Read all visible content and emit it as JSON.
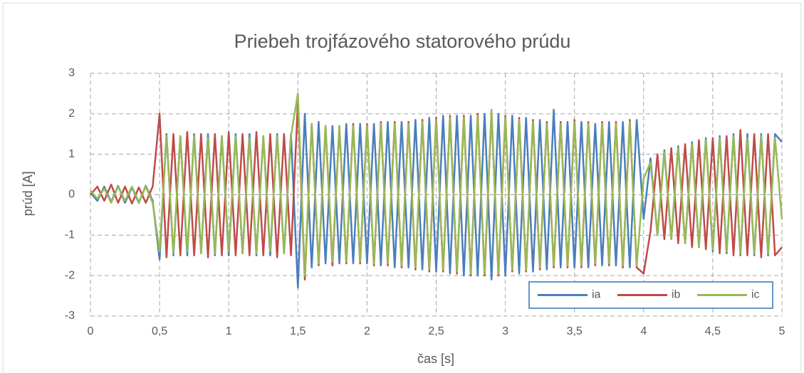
{
  "chart_data": {
    "type": "line",
    "title": "Priebeh trojfázového statorového prúdu",
    "x_label": "čas [s]",
    "y_label": "prúd [A]",
    "x": [
      0,
      0.05,
      0.1,
      0.15,
      0.2,
      0.25,
      0.3,
      0.35,
      0.4,
      0.45,
      0.5,
      0.55,
      0.6,
      0.65,
      0.7,
      0.75,
      0.8,
      0.85,
      0.9,
      0.95,
      1,
      1.05,
      1.1,
      1.15,
      1.2,
      1.25,
      1.3,
      1.35,
      1.4,
      1.45,
      1.5,
      1.55,
      1.6,
      1.65,
      1.7,
      1.75,
      1.8,
      1.85,
      1.9,
      1.95,
      2,
      2.05,
      2.1,
      2.15,
      2.2,
      2.25,
      2.3,
      2.35,
      2.4,
      2.45,
      2.5,
      2.55,
      2.6,
      2.65,
      2.7,
      2.75,
      2.8,
      2.85,
      2.9,
      2.95,
      3,
      3.05,
      3.1,
      3.15,
      3.2,
      3.25,
      3.3,
      3.35,
      3.4,
      3.45,
      3.5,
      3.55,
      3.6,
      3.65,
      3.7,
      3.75,
      3.8,
      3.85,
      3.9,
      3.95,
      4,
      4.05,
      4.1,
      4.15,
      4.2,
      4.25,
      4.3,
      4.35,
      4.4,
      4.45,
      4.5,
      4.55,
      4.6,
      4.65,
      4.7,
      4.75,
      4.8,
      4.85,
      4.9,
      4.95,
      5
    ],
    "series": [
      {
        "name": "ia",
        "color": "#4a7ebb",
        "values": [
          0.05,
          -0.15,
          0.2,
          -0.18,
          0.22,
          -0.2,
          0.18,
          -0.2,
          0.22,
          -0.15,
          -1.6,
          1.5,
          -1.5,
          1.45,
          -1.5,
          1.5,
          -1.45,
          1.5,
          -1.5,
          1.45,
          -1.5,
          1.5,
          -1.45,
          1.5,
          -1.5,
          1.45,
          -1.5,
          1.5,
          -1.45,
          1.5,
          -2.3,
          2.0,
          -1.8,
          1.8,
          -1.7,
          1.7,
          -1.7,
          1.75,
          -1.7,
          1.75,
          -1.7,
          1.75,
          -1.75,
          1.8,
          -1.8,
          1.8,
          -1.8,
          1.85,
          -1.85,
          1.9,
          -1.9,
          1.95,
          -1.95,
          1.95,
          -2.0,
          1.95,
          -2.0,
          2.0,
          -2.1,
          2.0,
          -2.0,
          1.95,
          -1.95,
          1.9,
          -1.9,
          1.85,
          -1.85,
          2.1,
          -1.8,
          1.8,
          -1.8,
          1.8,
          -1.8,
          1.75,
          -1.75,
          1.8,
          -1.75,
          1.8,
          -1.8,
          1.85,
          -0.6,
          0.9,
          -1.0,
          1.1,
          -1.1,
          1.2,
          -1.2,
          1.3,
          -1.3,
          1.4,
          -1.4,
          1.45,
          -1.45,
          1.5,
          -1.5,
          1.5,
          -1.5,
          1.5,
          -1.5,
          1.5,
          1.3
        ]
      },
      {
        "name": "ib",
        "color": "#be4b48",
        "values": [
          0.0,
          0.2,
          -0.15,
          0.25,
          -0.2,
          0.2,
          -0.22,
          0.18,
          -0.2,
          0.2,
          2.0,
          -1.55,
          1.5,
          -1.5,
          1.55,
          -1.5,
          1.5,
          -1.55,
          1.5,
          -1.5,
          1.55,
          -1.5,
          1.5,
          -1.5,
          1.55,
          -1.5,
          1.5,
          -1.55,
          1.5,
          -1.5,
          2.3,
          -2.1,
          1.75,
          -1.75,
          1.7,
          -1.75,
          1.7,
          -1.7,
          1.75,
          -1.7,
          1.75,
          -1.75,
          1.8,
          -1.75,
          1.8,
          -1.8,
          1.8,
          -1.85,
          1.85,
          -1.9,
          1.9,
          -1.9,
          1.95,
          -1.95,
          1.95,
          -2.0,
          2.0,
          -2.0,
          2.05,
          -2.0,
          1.95,
          -1.9,
          1.9,
          -1.9,
          1.85,
          -1.85,
          1.8,
          -1.8,
          1.8,
          -1.8,
          1.85,
          -1.8,
          1.8,
          -1.75,
          1.8,
          -1.75,
          1.8,
          -1.8,
          1.85,
          -1.8,
          -1.95,
          -0.9,
          1.0,
          -1.1,
          1.15,
          -1.2,
          1.25,
          -1.3,
          1.35,
          -1.35,
          1.4,
          -1.45,
          1.45,
          -1.5,
          1.6,
          -1.5,
          1.5,
          -1.55,
          1.5,
          -1.5,
          -1.3
        ]
      },
      {
        "name": "ic",
        "color": "#98b954",
        "values": [
          0.1,
          -0.1,
          0.15,
          -0.2,
          0.2,
          -0.15,
          0.2,
          -0.18,
          0.2,
          -0.2,
          -1.4,
          1.45,
          -1.45,
          1.45,
          -1.4,
          1.45,
          -1.45,
          1.4,
          -1.45,
          1.45,
          -1.4,
          1.45,
          -1.45,
          1.4,
          -1.45,
          1.45,
          -1.4,
          1.45,
          -1.45,
          1.45,
          2.5,
          -2.0,
          1.75,
          -1.7,
          1.7,
          -1.65,
          1.7,
          -1.65,
          1.7,
          -1.65,
          1.7,
          -1.7,
          1.75,
          -1.7,
          1.75,
          -1.75,
          1.75,
          -1.8,
          1.8,
          -1.85,
          1.85,
          -1.85,
          1.9,
          -1.9,
          1.9,
          -1.95,
          1.95,
          -1.95,
          2.1,
          -1.95,
          1.9,
          -1.85,
          1.85,
          -1.85,
          1.8,
          -1.8,
          1.75,
          -1.75,
          1.75,
          -1.75,
          1.8,
          -1.75,
          1.75,
          -1.7,
          1.75,
          -1.7,
          1.75,
          -1.75,
          1.8,
          -1.75,
          0.4,
          0.8,
          -1.0,
          1.05,
          -1.1,
          1.15,
          -1.2,
          1.25,
          -1.3,
          1.35,
          -1.35,
          1.4,
          -1.4,
          1.45,
          -1.45,
          1.4,
          -1.45,
          1.45,
          -1.45,
          1.4,
          -0.6
        ]
      }
    ],
    "xlim": [
      0,
      5
    ],
    "ylim": [
      -3,
      3
    ],
    "xticks": [
      0,
      {
        "value": 0.5,
        "label": "0,5"
      },
      1,
      {
        "value": 1.5,
        "label": "1,5"
      },
      2,
      {
        "value": 2.5,
        "label": "2,5"
      },
      3,
      {
        "value": 3.5,
        "label": "3,5"
      },
      4,
      {
        "value": 4.5,
        "label": "4,5"
      },
      5
    ],
    "yticks": [
      -3,
      -2,
      -1,
      0,
      1,
      2,
      3
    ],
    "grid": true,
    "legend": "lower right"
  }
}
